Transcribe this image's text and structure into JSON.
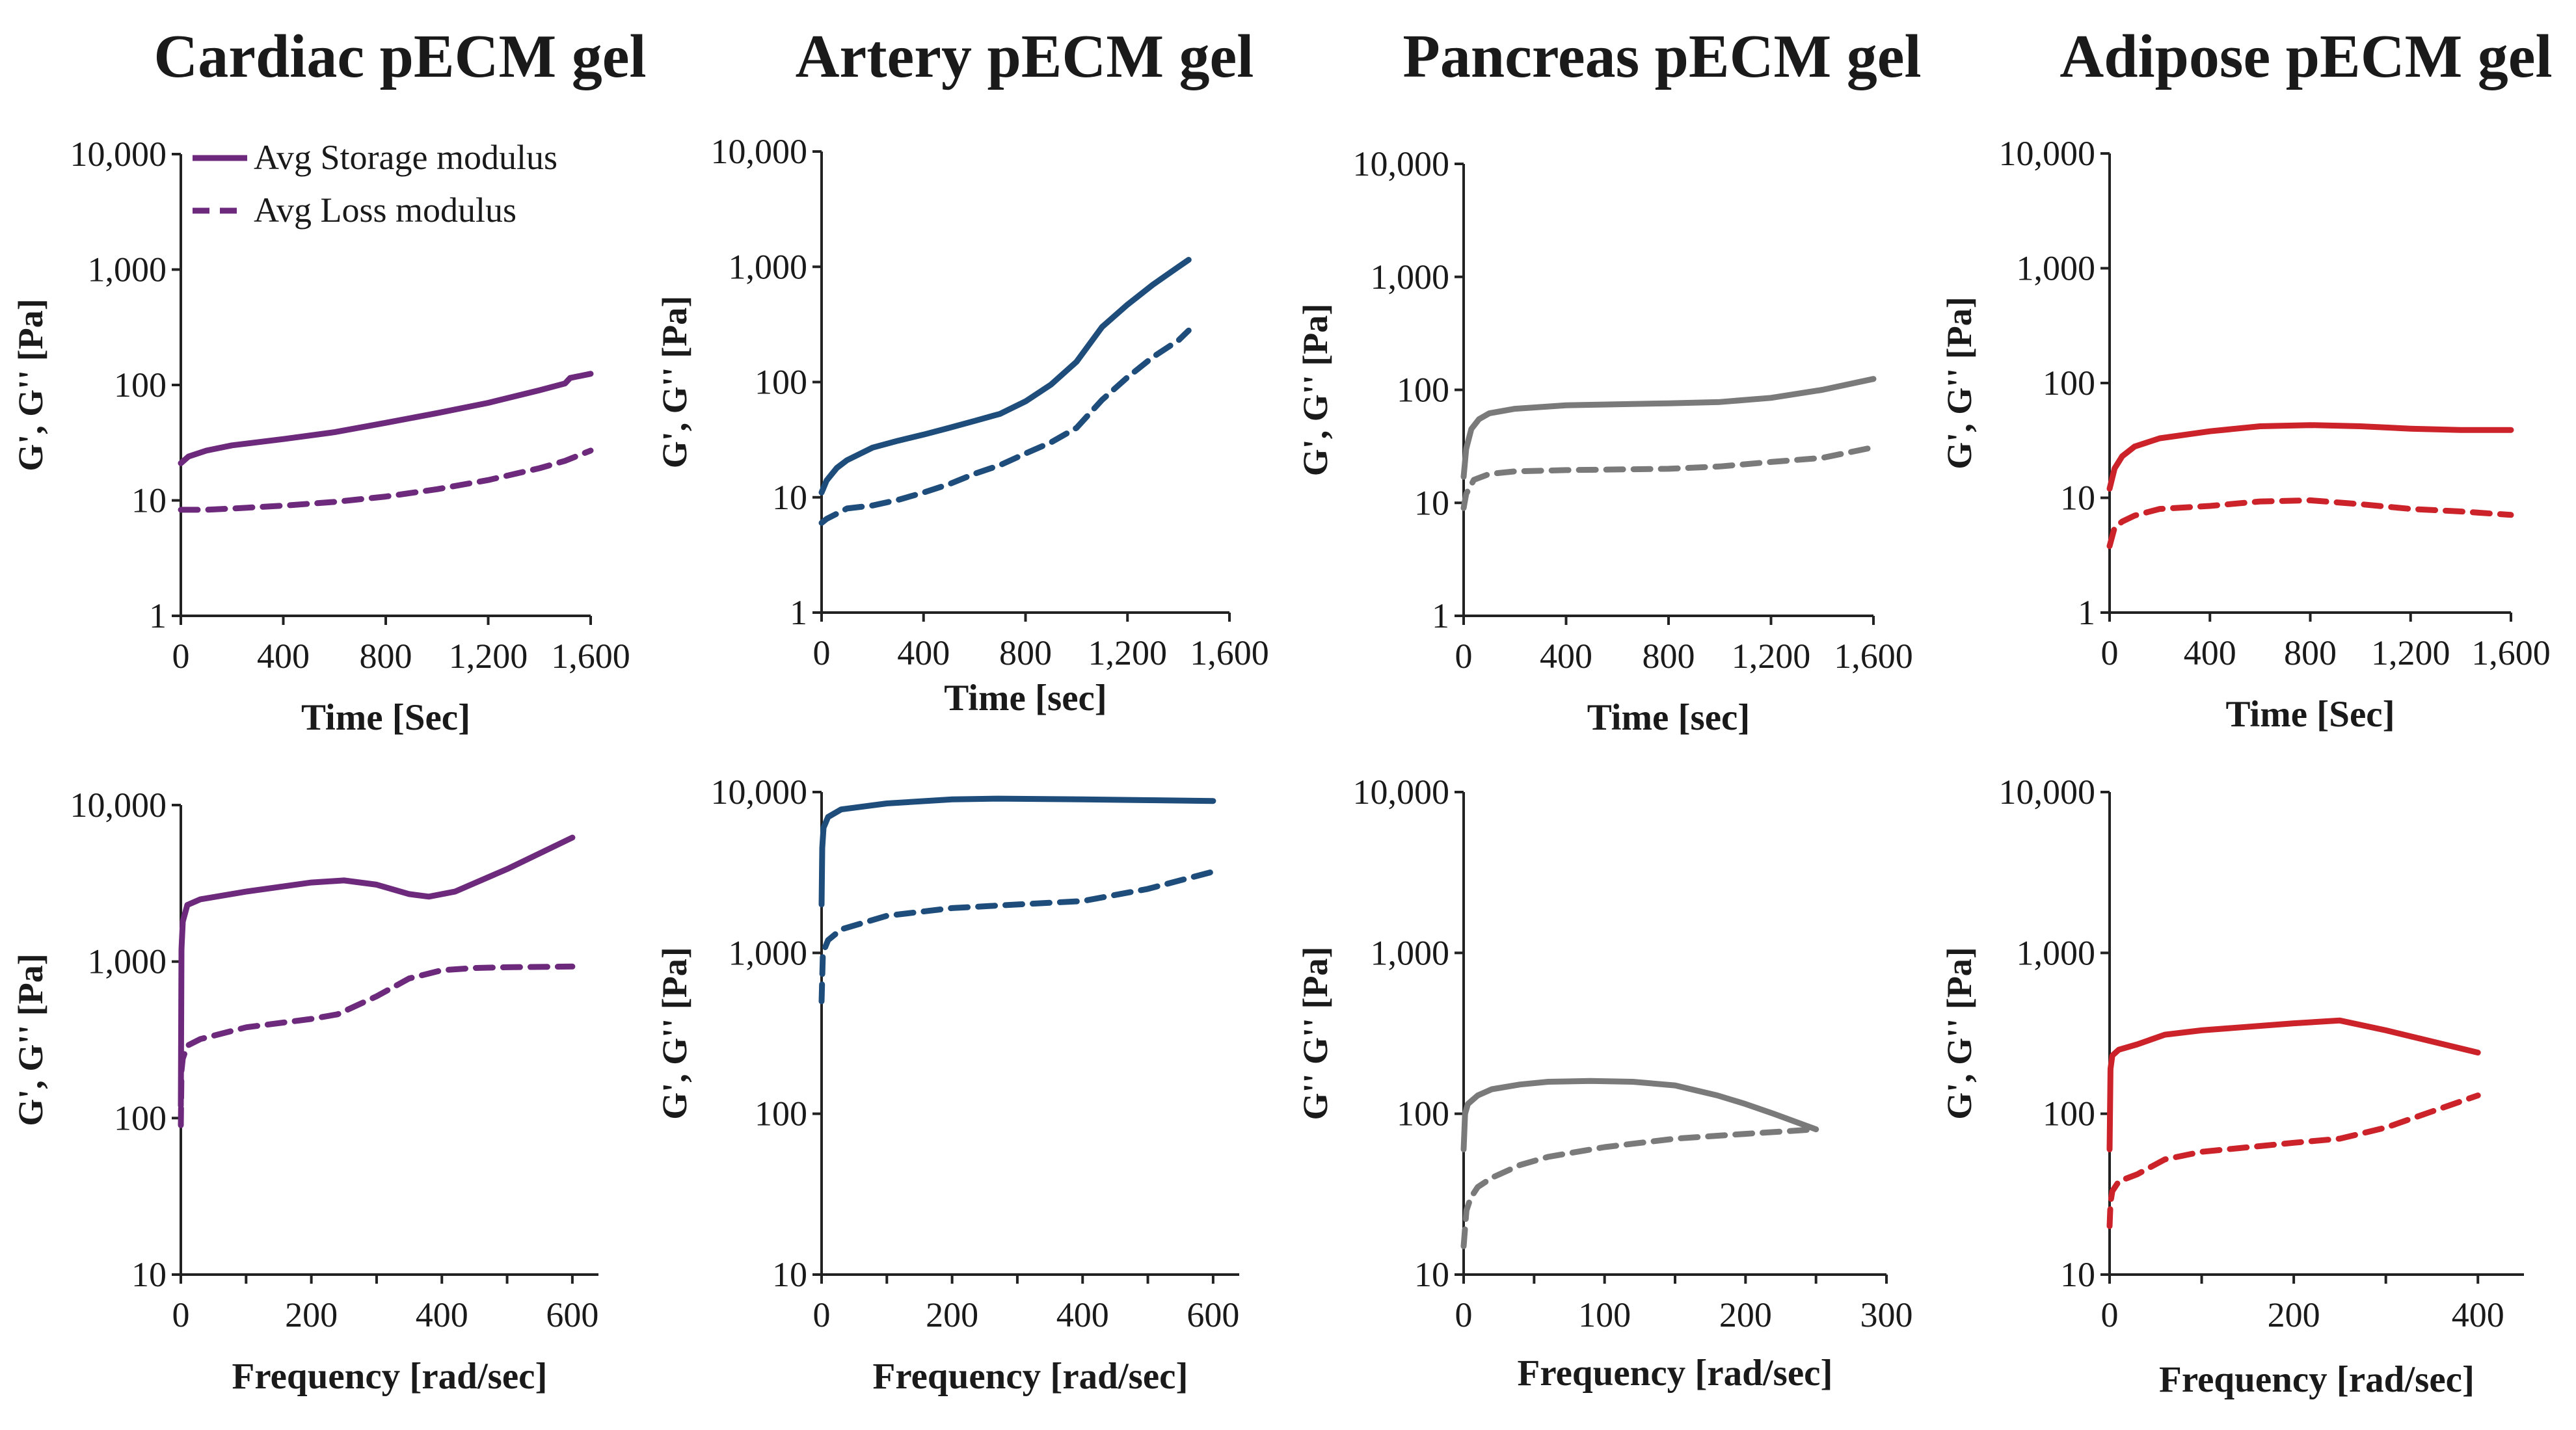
{
  "figure_titles": [
    "Cardiac pECM gel",
    "Artery pECM gel",
    "Pancreas pECM gel",
    "Adipose pECM gel"
  ],
  "legend": {
    "storage_label": "Avg Storage modulus",
    "loss_label": "Avg Loss modulus"
  },
  "chart_data": [
    {
      "id": "cardiac-time",
      "type": "line",
      "title": "Cardiac pECM gel",
      "xlabel": "Time [Sec]",
      "ylabel": "G', G'' [Pa]",
      "xlim": [
        0,
        1600
      ],
      "ylim": [
        1,
        10000
      ],
      "yscale": "log",
      "xticks": [
        "0",
        "400",
        "800",
        "1,200",
        "1,600"
      ],
      "yticks": [
        "1",
        "10",
        "100",
        "1,000",
        "10,000"
      ],
      "color": "#6d2a7c",
      "series": [
        {
          "name": "Avg Storage modulus",
          "style": "solid",
          "x": [
            0,
            30,
            100,
            200,
            400,
            600,
            800,
            1000,
            1200,
            1400,
            1500,
            1520,
            1600
          ],
          "y": [
            21,
            24,
            27,
            30,
            34,
            39,
            47,
            57,
            70,
            90,
            103,
            115,
            125
          ]
        },
        {
          "name": "Avg Loss modulus",
          "style": "dashed",
          "x": [
            0,
            100,
            200,
            400,
            600,
            800,
            1000,
            1200,
            1400,
            1500,
            1600
          ],
          "y": [
            8.3,
            8.3,
            8.5,
            9.0,
            9.7,
            10.8,
            12.5,
            15,
            19,
            22,
            27
          ]
        }
      ]
    },
    {
      "id": "artery-time",
      "type": "line",
      "title": "Artery pECM gel",
      "xlabel": "Time [sec]",
      "ylabel": "G', G'' [Pa]",
      "xlim": [
        0,
        1600
      ],
      "ylim": [
        1,
        10000
      ],
      "yscale": "log",
      "xticks": [
        "0",
        "400",
        "800",
        "1,200",
        "1,600"
      ],
      "yticks": [
        "1",
        "10",
        "100",
        "1,000",
        "10,000"
      ],
      "color": "#1e4d7b",
      "series": [
        {
          "name": "Avg Storage modulus",
          "style": "solid",
          "x": [
            0,
            20,
            60,
            100,
            200,
            300,
            400,
            500,
            600,
            700,
            800,
            900,
            1000,
            1100,
            1200,
            1300,
            1400,
            1440
          ],
          "y": [
            11,
            14,
            18,
            21,
            27,
            31,
            35,
            40,
            46,
            53,
            68,
            95,
            150,
            300,
            470,
            700,
            1000,
            1150
          ]
        },
        {
          "name": "Avg Loss modulus",
          "style": "dashed",
          "x": [
            0,
            20,
            100,
            200,
            300,
            400,
            500,
            600,
            700,
            800,
            900,
            1000,
            1100,
            1200,
            1300,
            1400,
            1440
          ],
          "y": [
            6,
            6.5,
            8.0,
            8.5,
            9.5,
            11,
            13,
            16,
            19,
            24,
            30,
            40,
            70,
            110,
            165,
            230,
            280
          ]
        }
      ]
    },
    {
      "id": "pancreas-time",
      "type": "line",
      "title": "Pancreas pECM gel",
      "xlabel": "Time [sec]",
      "ylabel": "G', G'' [Pa]",
      "xlim": [
        0,
        1600
      ],
      "ylim": [
        1,
        10000
      ],
      "yscale": "log",
      "xticks": [
        "0",
        "400",
        "800",
        "1,200",
        "1,600"
      ],
      "yticks": [
        "1",
        "10",
        "100",
        "1,000",
        "10,000"
      ],
      "color": "#7a7a7a",
      "series": [
        {
          "name": "Avg Storage modulus",
          "style": "solid",
          "x": [
            0,
            10,
            30,
            60,
            100,
            200,
            400,
            800,
            1000,
            1200,
            1400,
            1600
          ],
          "y": [
            17,
            30,
            45,
            55,
            62,
            68,
            73,
            76,
            78,
            85,
            100,
            125
          ]
        },
        {
          "name": "Avg Loss modulus",
          "style": "dashed",
          "x": [
            0,
            10,
            40,
            100,
            200,
            400,
            800,
            1000,
            1200,
            1400,
            1600
          ],
          "y": [
            9,
            12,
            16,
            18,
            19,
            19.5,
            20,
            21,
            23,
            25,
            31
          ]
        }
      ]
    },
    {
      "id": "adipose-time",
      "type": "line",
      "title": "Adipose pECM gel",
      "xlabel": "Time [Sec]",
      "ylabel": "G', G'' [Pa]",
      "xlim": [
        0,
        1600
      ],
      "ylim": [
        1,
        10000
      ],
      "yscale": "log",
      "xticks": [
        "0",
        "400",
        "800",
        "1,200",
        "1,600"
      ],
      "yticks": [
        "1",
        "10",
        "100",
        "1,000",
        "10,000"
      ],
      "color": "#cc2229",
      "series": [
        {
          "name": "Avg Storage modulus",
          "style": "solid",
          "x": [
            0,
            20,
            50,
            100,
            200,
            400,
            600,
            800,
            1000,
            1200,
            1400,
            1600
          ],
          "y": [
            12,
            18,
            23,
            28,
            33,
            38,
            42,
            43,
            42,
            40,
            39,
            39
          ]
        },
        {
          "name": "Avg Loss modulus",
          "style": "dashed",
          "x": [
            0,
            20,
            50,
            100,
            200,
            400,
            600,
            800,
            1000,
            1200,
            1400,
            1600
          ],
          "y": [
            3.8,
            5.5,
            6.2,
            7.0,
            8.0,
            8.5,
            9.3,
            9.5,
            8.8,
            8.0,
            7.6,
            7.1
          ]
        }
      ]
    },
    {
      "id": "cardiac-freq",
      "type": "line",
      "title": "Cardiac pECM gel",
      "xlabel": "Frequency [rad/sec]",
      "ylabel": "G', G'' [Pa]",
      "xlim": [
        0,
        640
      ],
      "ylim": [
        10,
        10000
      ],
      "yscale": "log",
      "xticks": [
        "0",
        "200",
        "400",
        "600"
      ],
      "yticks": [
        "10",
        "100",
        "1,000",
        "10,000"
      ],
      "color": "#6d2a7c",
      "series": [
        {
          "name": "Avg Storage modulus",
          "style": "solid",
          "x": [
            0,
            1,
            3,
            10,
            30,
            100,
            200,
            250,
            300,
            350,
            380,
            420,
            500,
            600
          ],
          "y": [
            120,
            1200,
            1800,
            2300,
            2500,
            2800,
            3200,
            3300,
            3100,
            2700,
            2600,
            2800,
            3900,
            6200
          ]
        },
        {
          "name": "Avg Loss modulus",
          "style": "dashed",
          "x": [
            0,
            1,
            3,
            10,
            30,
            100,
            200,
            240,
            300,
            350,
            400,
            450,
            500,
            600
          ],
          "y": [
            90,
            200,
            240,
            290,
            320,
            380,
            430,
            460,
            600,
            780,
            880,
            910,
            920,
            930
          ]
        }
      ]
    },
    {
      "id": "artery-freq",
      "type": "line",
      "title": "Artery pECM gel",
      "xlabel": "Frequency [rad/sec]",
      "ylabel": "G', G'' [Pa]",
      "xlim": [
        0,
        640
      ],
      "ylim": [
        10,
        10000
      ],
      "yscale": "log",
      "xticks": [
        "0",
        "200",
        "400",
        "600"
      ],
      "yticks": [
        "10",
        "100",
        "1,000",
        "10,000"
      ],
      "color": "#1e4d7b",
      "series": [
        {
          "name": "Avg Storage modulus",
          "style": "solid",
          "x": [
            0,
            1,
            3,
            10,
            30,
            100,
            200,
            270,
            400,
            500,
            600
          ],
          "y": [
            2000,
            4500,
            6000,
            7000,
            7800,
            8500,
            9000,
            9100,
            9000,
            8900,
            8800
          ]
        },
        {
          "name": "Avg Loss modulus",
          "style": "dashed",
          "x": [
            0,
            2,
            10,
            30,
            100,
            200,
            300,
            400,
            500,
            600
          ],
          "y": [
            500,
            1000,
            1200,
            1400,
            1700,
            1900,
            2000,
            2100,
            2500,
            3200
          ]
        }
      ]
    },
    {
      "id": "pancreas-freq",
      "type": "line",
      "title": "Pancreas pECM gel",
      "xlabel": "Frequency [rad/sec]",
      "ylabel": "G'' G'' [Pa]",
      "xlim": [
        0,
        300
      ],
      "ylim": [
        10,
        10000
      ],
      "yscale": "log",
      "xticks": [
        "0",
        "100",
        "200",
        "300"
      ],
      "yticks": [
        "10",
        "100",
        "1,000",
        "10,000"
      ],
      "color": "#7a7a7a",
      "series": [
        {
          "name": "Avg Storage modulus",
          "style": "solid",
          "x": [
            0,
            1,
            3,
            10,
            20,
            40,
            60,
            90,
            120,
            150,
            180,
            200,
            220,
            250
          ],
          "y": [
            60,
            100,
            115,
            130,
            142,
            152,
            158,
            160,
            158,
            150,
            130,
            115,
            100,
            80
          ]
        },
        {
          "name": "Avg Loss modulus",
          "style": "dashed",
          "x": [
            0,
            2,
            5,
            10,
            20,
            40,
            60,
            100,
            150,
            200,
            250
          ],
          "y": [
            15,
            25,
            30,
            35,
            40,
            48,
            54,
            62,
            70,
            75,
            80
          ]
        }
      ]
    },
    {
      "id": "adipose-freq",
      "type": "line",
      "title": "Adipose pECM gel",
      "xlabel": "Frequency [rad/sec]",
      "ylabel": "G', G'' [Pa]",
      "xlim": [
        0,
        450
      ],
      "ylim": [
        10,
        10000
      ],
      "yscale": "log",
      "xticks": [
        "0",
        "200",
        "400"
      ],
      "yticks": [
        "10",
        "100",
        "1,000",
        "10,000"
      ],
      "color": "#cc2229",
      "series": [
        {
          "name": "Avg Storage modulus",
          "style": "solid",
          "x": [
            0,
            1,
            3,
            10,
            30,
            60,
            100,
            200,
            250,
            300,
            400
          ],
          "y": [
            60,
            190,
            230,
            250,
            270,
            310,
            330,
            365,
            380,
            330,
            240
          ]
        },
        {
          "name": "Avg Loss modulus",
          "style": "dashed",
          "x": [
            0,
            1,
            3,
            10,
            30,
            60,
            100,
            200,
            250,
            300,
            400
          ],
          "y": [
            20,
            28,
            33,
            38,
            42,
            52,
            58,
            66,
            70,
            82,
            130
          ]
        }
      ]
    }
  ]
}
